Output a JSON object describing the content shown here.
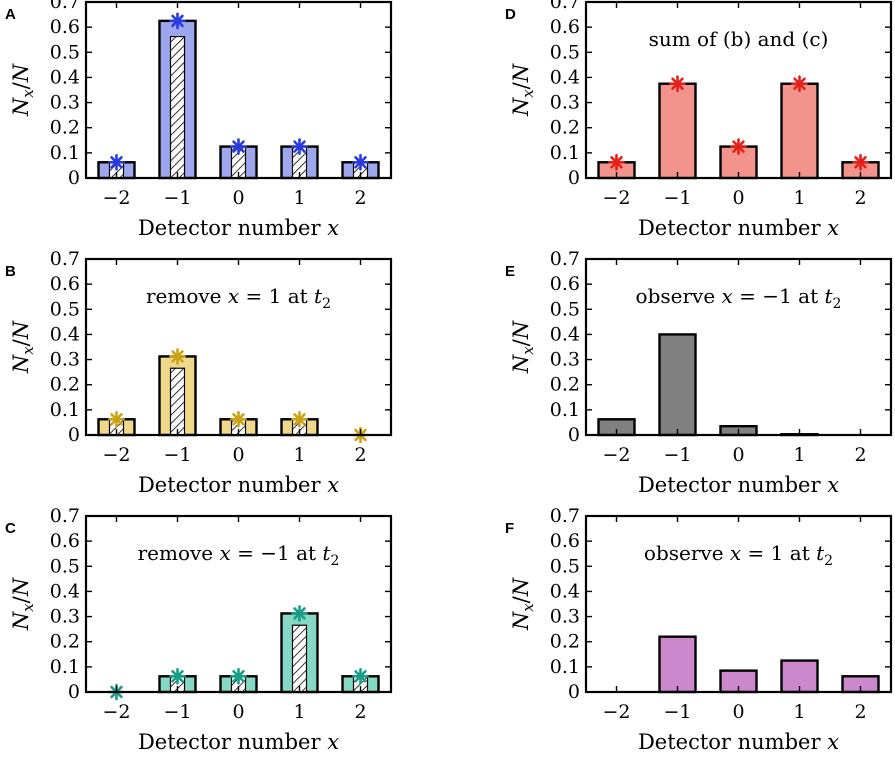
{
  "chart_data": [
    {
      "type": "bar",
      "panel": "A",
      "annotation": "",
      "categories": [
        "−2",
        "−1",
        "0",
        "1",
        "2"
      ],
      "values": [
        0.0625,
        0.625,
        0.125,
        0.125,
        0.0625
      ],
      "inner_values": [
        0.0625,
        0.5625,
        0.125,
        0.125,
        0.0625
      ],
      "markers": [
        0.0625,
        0.625,
        0.125,
        0.125,
        0.0625
      ],
      "xlabel": "Detector number x",
      "ylabel": "Nx/N",
      "ylim": [
        0,
        0.7
      ],
      "yticks": [
        "0",
        "0.1",
        "0.2",
        "0.3",
        "0.4",
        "0.5",
        "0.6",
        "0.7"
      ],
      "bar_color": "#9ea6ee",
      "marker_color": "#2a3bdc"
    },
    {
      "type": "bar",
      "panel": "B",
      "annotation": "remove x = 1 at t2",
      "categories": [
        "−2",
        "−1",
        "0",
        "1",
        "2"
      ],
      "values": [
        0.0625,
        0.3125,
        0.0625,
        0.0625,
        0
      ],
      "inner_values": [
        0.0625,
        0.2656,
        0.0625,
        0.0625,
        0
      ],
      "markers": [
        0.0625,
        0.3125,
        0.0625,
        0.0625,
        0
      ],
      "xlabel": "Detector number x",
      "ylabel": "Nx/N",
      "ylim": [
        0,
        0.7
      ],
      "yticks": [
        "0",
        "0.1",
        "0.2",
        "0.3",
        "0.4",
        "0.5",
        "0.6",
        "0.7"
      ],
      "bar_color": "#f0d88a",
      "marker_color": "#c9a316"
    },
    {
      "type": "bar",
      "panel": "C",
      "annotation": "remove x = −1 at t2",
      "categories": [
        "−2",
        "−1",
        "0",
        "1",
        "2"
      ],
      "values": [
        0,
        0.0625,
        0.0625,
        0.3125,
        0.0625
      ],
      "inner_values": [
        0,
        0.0625,
        0.0625,
        0.2656,
        0.0625
      ],
      "markers": [
        0,
        0.0625,
        0.0625,
        0.3125,
        0.0625
      ],
      "xlabel": "Detector number x",
      "ylabel": "Nx/N",
      "ylim": [
        0,
        0.7
      ],
      "yticks": [
        "0",
        "0.1",
        "0.2",
        "0.3",
        "0.4",
        "0.5",
        "0.6",
        "0.7"
      ],
      "bar_color": "#84d8c4",
      "marker_color": "#1a9c86"
    },
    {
      "type": "bar",
      "panel": "D",
      "annotation": "sum of (b) and (c)",
      "categories": [
        "−2",
        "−1",
        "0",
        "1",
        "2"
      ],
      "values": [
        0.0625,
        0.375,
        0.125,
        0.375,
        0.0625
      ],
      "markers": [
        0.0625,
        0.375,
        0.125,
        0.375,
        0.0625
      ],
      "xlabel": "Detector number x",
      "ylabel": "Nx/N",
      "ylim": [
        0,
        0.7
      ],
      "yticks": [
        "0",
        "0.1",
        "0.2",
        "0.3",
        "0.4",
        "0.5",
        "0.6",
        "0.7"
      ],
      "bar_color": "#f2948c",
      "marker_color": "#e3221b"
    },
    {
      "type": "bar",
      "panel": "E",
      "annotation": "observe x = −1 at t2",
      "categories": [
        "−2",
        "−1",
        "0",
        "1",
        "2"
      ],
      "values": [
        0.0625,
        0.4,
        0.035,
        0.003,
        0
      ],
      "xlabel": "Detector number x",
      "ylabel": "Nx/N",
      "ylim": [
        0,
        0.7
      ],
      "yticks": [
        "0",
        "0.1",
        "0.2",
        "0.3",
        "0.4",
        "0.5",
        "0.6",
        "0.7"
      ],
      "bar_color": "#808080"
    },
    {
      "type": "bar",
      "panel": "F",
      "annotation": "observe x = 1 at t2",
      "categories": [
        "−2",
        "−1",
        "0",
        "1",
        "2"
      ],
      "values": [
        0,
        0.22,
        0.085,
        0.125,
        0.0625
      ],
      "xlabel": "Detector number x",
      "ylabel": "Nx/N",
      "ylim": [
        0,
        0.7
      ],
      "yticks": [
        "0",
        "0.1",
        "0.2",
        "0.3",
        "0.4",
        "0.5",
        "0.6",
        "0.7"
      ],
      "bar_color": "#cc88cc"
    }
  ]
}
